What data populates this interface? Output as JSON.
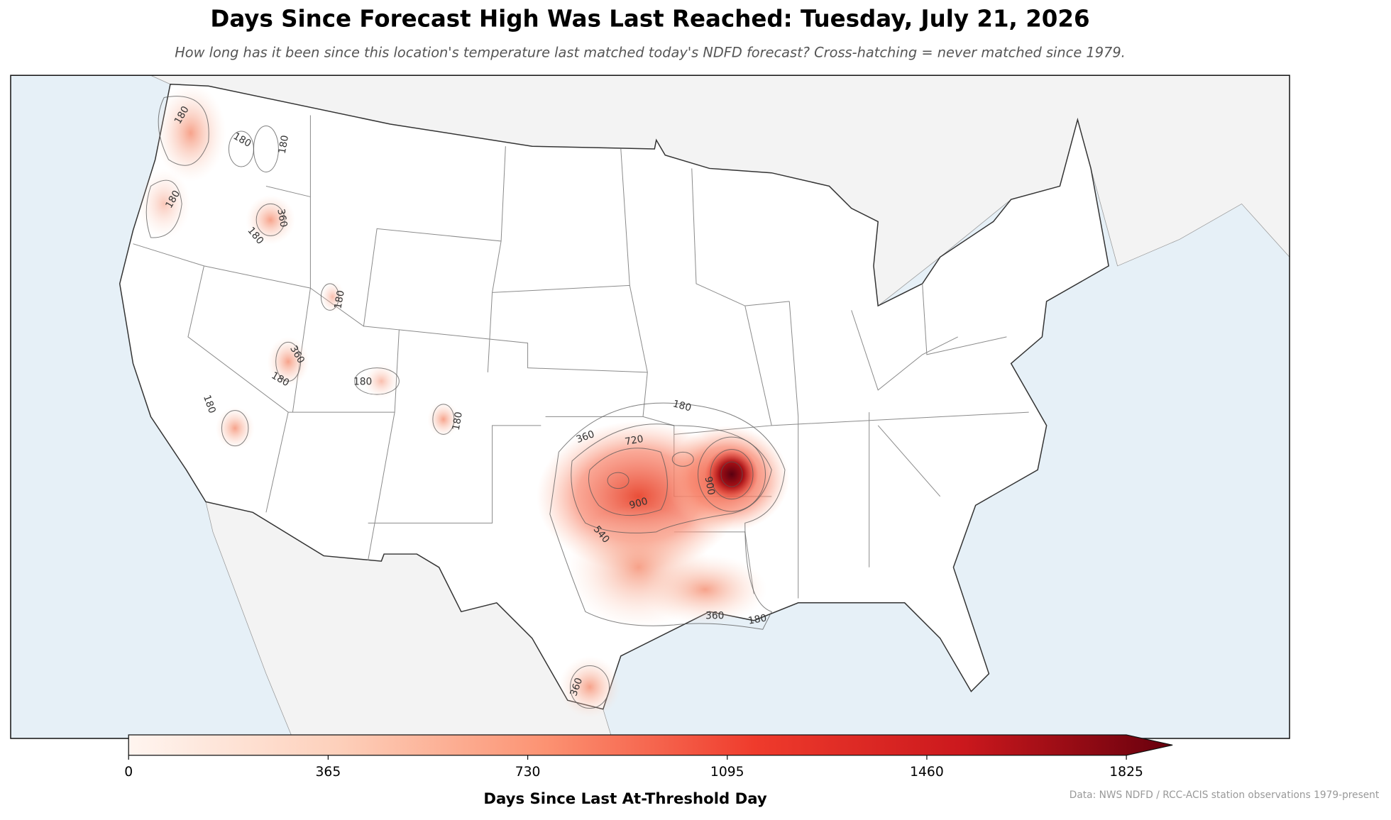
{
  "title": "Days Since Forecast High Was Last Reached: Tuesday, July 21, 2026",
  "subtitle": "How long has it been since this location's temperature last matched today's NDFD forecast? Cross-hatching = never matched since 1979.",
  "colorbar": {
    "label": "Days Since Last At-Threshold Day",
    "range": [
      0,
      1825
    ],
    "ticks": [
      0,
      365,
      730,
      1095,
      1460,
      1825
    ]
  },
  "contour_labels": [
    "180",
    "180",
    "180",
    "180",
    "360",
    "180",
    "180",
    "360",
    "180",
    "180",
    "180",
    "180",
    "180",
    "360",
    "720",
    "900",
    "900",
    "540",
    "360",
    "180",
    "360"
  ],
  "source": "Data: NWS NDFD / RCC-ACIS station observations 1979-present"
}
